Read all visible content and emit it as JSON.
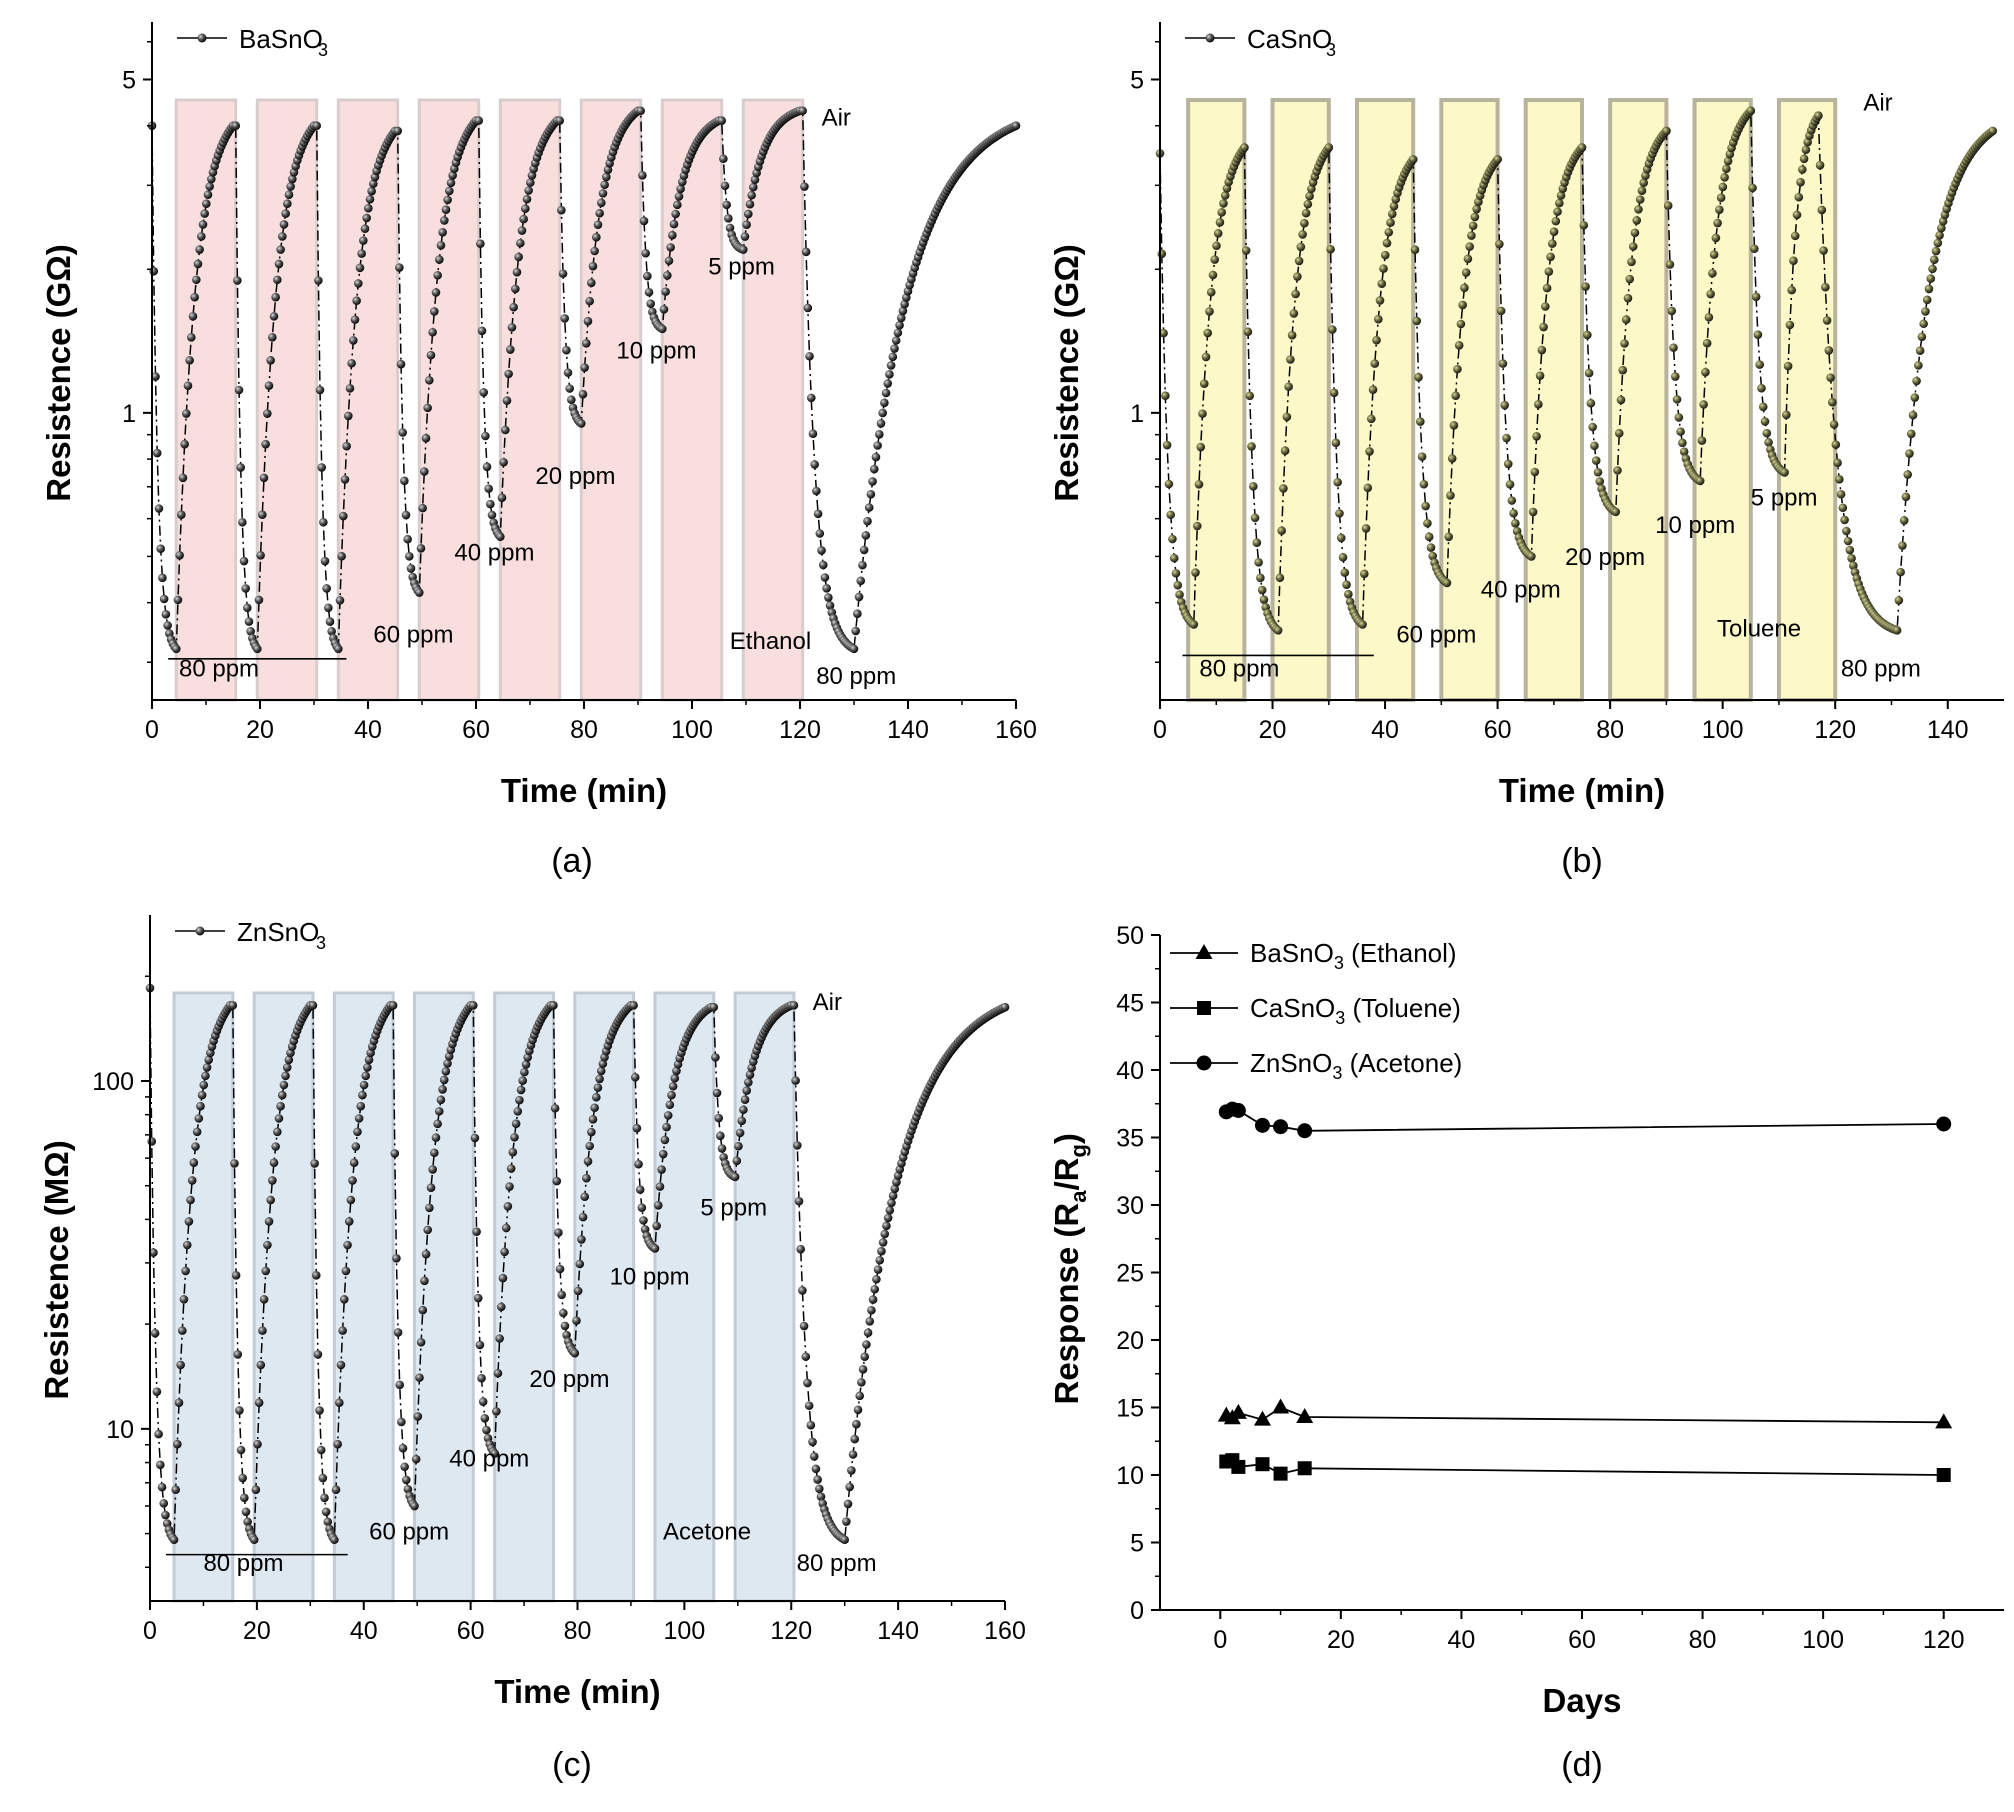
{
  "chart_data": [
    {
      "panel": "(a)",
      "type": "line",
      "xlabel": "Time (min)",
      "ylabel": "Resistence (GΩ)",
      "xlim": [
        0,
        160
      ],
      "xticks": [
        "0",
        "20",
        "40",
        "60",
        "80",
        "100",
        "120",
        "140",
        "160"
      ],
      "ylim": [
        0.25,
        6.6
      ],
      "yscale": "log",
      "yticks": [
        {
          "v": 1,
          "label": "1"
        },
        {
          "v": 5,
          "label": "5"
        }
      ],
      "legend": "BaSnO",
      "legend_sub": "3",
      "band_color": "#f9dede",
      "band_border": "#d9cccc",
      "bands": [
        [
          4.5,
          15.5
        ],
        [
          19.5,
          30.5
        ],
        [
          34.5,
          45.5
        ],
        [
          49.5,
          60.5
        ],
        [
          64.5,
          75.5
        ],
        [
          79.5,
          90.5
        ],
        [
          94.5,
          105.5
        ],
        [
          109.5,
          120.5
        ]
      ],
      "series": [
        {
          "cycles": [
            {
              "t0": 0,
              "t1": 4.5,
              "r0": 4.0,
              "rmin": 0.32,
              "t2": 15,
              "rmax": 4.0
            },
            {
              "t0": 15.5,
              "t1": 19.5,
              "r0": 4.0,
              "rmin": 0.32,
              "t2": 30,
              "rmax": 4.0
            },
            {
              "t0": 30.5,
              "t1": 34.5,
              "r0": 4.0,
              "rmin": 0.32,
              "t2": 45,
              "rmax": 3.9
            },
            {
              "t0": 45.5,
              "t1": 49.5,
              "r0": 3.9,
              "rmin": 0.42,
              "t2": 60,
              "rmax": 4.1
            },
            {
              "t0": 60.5,
              "t1": 64.5,
              "r0": 4.1,
              "rmin": 0.55,
              "t2": 75,
              "rmax": 4.1
            },
            {
              "t0": 75.5,
              "t1": 79.5,
              "r0": 4.1,
              "rmin": 0.95,
              "t2": 90,
              "rmax": 4.3
            },
            {
              "t0": 90.5,
              "t1": 94.5,
              "r0": 4.3,
              "rmin": 1.5,
              "t2": 105,
              "rmax": 4.1
            },
            {
              "t0": 105.5,
              "t1": 109.5,
              "r0": 4.1,
              "rmin": 2.2,
              "t2": 120,
              "rmax": 4.3
            },
            {
              "t0": 120.5,
              "t1": 130,
              "r0": 4.3,
              "rmin": 0.32,
              "t2": 160,
              "rmax": 4.0
            }
          ]
        }
      ],
      "annotations": [
        {
          "text": "Air",
          "x": 124,
          "y": 4.0
        },
        {
          "text": "Ethanol",
          "x": 107,
          "y": 0.32
        },
        {
          "text": "80 ppm",
          "x": 5,
          "y": 0.28,
          "line": [
            3,
            36,
            0.305
          ]
        },
        {
          "text": "60 ppm",
          "x": 41,
          "y": 0.33
        },
        {
          "text": "40 ppm",
          "x": 56,
          "y": 0.49
        },
        {
          "text": "20 ppm",
          "x": 71,
          "y": 0.71
        },
        {
          "text": "10 ppm",
          "x": 86,
          "y": 1.3
        },
        {
          "text": "5 ppm",
          "x": 103,
          "y": 1.95
        },
        {
          "text": "80 ppm",
          "x": 123,
          "y": 0.27
        }
      ]
    },
    {
      "panel": "(b)",
      "type": "line",
      "xlabel": "Time (min)",
      "ylabel": "Resistence (GΩ)",
      "xlim": [
        0,
        150
      ],
      "xticks": [
        "0",
        "20",
        "40",
        "60",
        "80",
        "100",
        "120",
        "140"
      ],
      "ylim": [
        0.25,
        6.6
      ],
      "yscale": "log",
      "yticks": [
        {
          "v": 1,
          "label": "1"
        },
        {
          "v": 5,
          "label": "5"
        }
      ],
      "legend": "CaSnO",
      "legend_sub": "3",
      "band_color": "#fcf8c8",
      "band_border": "#b7b39c",
      "bands": [
        [
          5,
          15
        ],
        [
          20,
          30
        ],
        [
          35,
          45
        ],
        [
          50,
          60
        ],
        [
          65,
          75
        ],
        [
          80,
          90
        ],
        [
          95,
          105
        ],
        [
          110,
          120
        ]
      ],
      "series": [
        {
          "cycles": [
            {
              "t0": 0,
              "t1": 6,
              "r0": 3.5,
              "rmin": 0.36,
              "t2": 15,
              "rmax": 3.6
            },
            {
              "t0": 15,
              "t1": 21,
              "r0": 3.6,
              "rmin": 0.35,
              "t2": 30,
              "rmax": 3.6
            },
            {
              "t0": 30,
              "t1": 36,
              "r0": 3.6,
              "rmin": 0.36,
              "t2": 45,
              "rmax": 3.4
            },
            {
              "t0": 45,
              "t1": 51,
              "r0": 3.4,
              "rmin": 0.44,
              "t2": 60,
              "rmax": 3.4
            },
            {
              "t0": 60,
              "t1": 66,
              "r0": 3.4,
              "rmin": 0.5,
              "t2": 75,
              "rmax": 3.6
            },
            {
              "t0": 75,
              "t1": 81,
              "r0": 3.6,
              "rmin": 0.62,
              "t2": 90,
              "rmax": 3.9
            },
            {
              "t0": 90,
              "t1": 96,
              "r0": 3.9,
              "rmin": 0.72,
              "t2": 105,
              "rmax": 4.3
            },
            {
              "t0": 105,
              "t1": 111,
              "r0": 4.3,
              "rmin": 0.75,
              "t2": 117,
              "rmax": 4.2
            },
            {
              "t0": 117,
              "t1": 131,
              "r0": 4.2,
              "rmin": 0.35,
              "t2": 148,
              "rmax": 3.9
            }
          ]
        }
      ],
      "annotations": [
        {
          "text": "Air",
          "x": 125,
          "y": 4.3
        },
        {
          "text": "Toluene",
          "x": 99,
          "y": 0.34
        },
        {
          "text": "80 ppm",
          "x": 7,
          "y": 0.28,
          "line": [
            4,
            38,
            0.31
          ]
        },
        {
          "text": "60 ppm",
          "x": 42,
          "y": 0.33
        },
        {
          "text": "40 ppm",
          "x": 57,
          "y": 0.41
        },
        {
          "text": "20 ppm",
          "x": 72,
          "y": 0.48
        },
        {
          "text": "10 ppm",
          "x": 88,
          "y": 0.56
        },
        {
          "text": "5 ppm",
          "x": 105,
          "y": 0.64
        },
        {
          "text": "80 ppm",
          "x": 121,
          "y": 0.28
        }
      ]
    },
    {
      "panel": "(c)",
      "type": "line",
      "xlabel": "Time (min)",
      "ylabel": "Resistence (MΩ)",
      "xlim": [
        0,
        160
      ],
      "xticks": [
        "0",
        "20",
        "40",
        "60",
        "80",
        "100",
        "120",
        "140",
        "160"
      ],
      "ylim": [
        3.2,
        300
      ],
      "yscale": "log",
      "yticks": [
        {
          "v": 10,
          "label": "10"
        },
        {
          "v": 100,
          "label": "100"
        }
      ],
      "legend": "ZnSnO",
      "legend_sub": "3",
      "band_color": "#dde8f1",
      "band_border": "#c2cbd6",
      "bands": [
        [
          4.5,
          15.5
        ],
        [
          19.5,
          30.5
        ],
        [
          34.5,
          45.5
        ],
        [
          49.5,
          60.5
        ],
        [
          64.5,
          75.5
        ],
        [
          79.5,
          90.5
        ],
        [
          94.5,
          105.5
        ],
        [
          109.5,
          120.5
        ]
      ],
      "series": [
        {
          "cycles": [
            {
              "t0": 0,
              "t1": 4.5,
              "r0": 185,
              "rmin": 4.8,
              "t2": 15,
              "rmax": 165
            },
            {
              "t0": 15.5,
              "t1": 19.5,
              "r0": 165,
              "rmin": 4.8,
              "t2": 30,
              "rmax": 165
            },
            {
              "t0": 30.5,
              "t1": 34.5,
              "r0": 165,
              "rmin": 4.8,
              "t2": 45,
              "rmax": 165
            },
            {
              "t0": 45.5,
              "t1": 49.5,
              "r0": 165,
              "rmin": 6.0,
              "t2": 60,
              "rmax": 165
            },
            {
              "t0": 60.5,
              "t1": 64.5,
              "r0": 165,
              "rmin": 8.5,
              "t2": 75,
              "rmax": 165
            },
            {
              "t0": 75.5,
              "t1": 79.5,
              "r0": 165,
              "rmin": 16.5,
              "t2": 90,
              "rmax": 165
            },
            {
              "t0": 90.5,
              "t1": 94.5,
              "r0": 165,
              "rmin": 33,
              "t2": 105,
              "rmax": 163
            },
            {
              "t0": 105.5,
              "t1": 109.5,
              "r0": 163,
              "rmin": 53,
              "t2": 120,
              "rmax": 165
            },
            {
              "t0": 120.5,
              "t1": 130,
              "r0": 165,
              "rmin": 4.8,
              "t2": 160,
              "rmax": 163
            }
          ]
        }
      ],
      "annotations": [
        {
          "text": "Air",
          "x": 124,
          "y": 160
        },
        {
          "text": "Acetone",
          "x": 96,
          "y": 4.8
        },
        {
          "text": "80 ppm",
          "x": 10,
          "y": 3.9,
          "line": [
            3,
            37,
            4.35
          ]
        },
        {
          "text": "60 ppm",
          "x": 41,
          "y": 4.8
        },
        {
          "text": "40 ppm",
          "x": 56,
          "y": 7.8
        },
        {
          "text": "20 ppm",
          "x": 71,
          "y": 13.2
        },
        {
          "text": "10 ppm",
          "x": 86,
          "y": 26
        },
        {
          "text": "5 ppm",
          "x": 103,
          "y": 41
        },
        {
          "text": "80 ppm",
          "x": 121,
          "y": 3.9
        }
      ]
    },
    {
      "panel": "(d)",
      "type": "scatter",
      "xlabel": "Days",
      "ylabel": "Response (R",
      "ylabel_sub_a": "a",
      "ylabel_mid": "/R",
      "ylabel_sub_g": "g",
      "ylabel_end": ")",
      "xlim": [
        -10,
        130
      ],
      "ylim": [
        0,
        50
      ],
      "xticks": [
        0,
        20,
        40,
        60,
        80,
        100,
        120
      ],
      "yticks": [
        0,
        5,
        10,
        15,
        20,
        25,
        30,
        35,
        40,
        45,
        50
      ],
      "series": [
        {
          "name_main": "BaSnO",
          "name_sub": "3",
          "name_rest": " (Ethanol)",
          "marker": "triangle",
          "x": [
            1,
            2,
            3,
            7,
            10,
            14,
            120
          ],
          "y": [
            14.4,
            14.2,
            14.6,
            14.1,
            15.0,
            14.3,
            13.9
          ]
        },
        {
          "name_main": "CaSnO",
          "name_sub": "3",
          "name_rest": " (Toluene)",
          "marker": "square",
          "x": [
            1,
            2,
            3,
            7,
            10,
            14,
            120
          ],
          "y": [
            11.0,
            11.1,
            10.6,
            10.8,
            10.1,
            10.5,
            10.0
          ]
        },
        {
          "name_main": "ZnSnO",
          "name_sub": "3",
          "name_rest": " (Acetone)",
          "marker": "circle",
          "x": [
            1,
            2,
            3,
            7,
            10,
            14,
            120
          ],
          "y": [
            36.9,
            37.1,
            37.0,
            35.9,
            35.8,
            35.5,
            36.0
          ]
        }
      ]
    }
  ]
}
